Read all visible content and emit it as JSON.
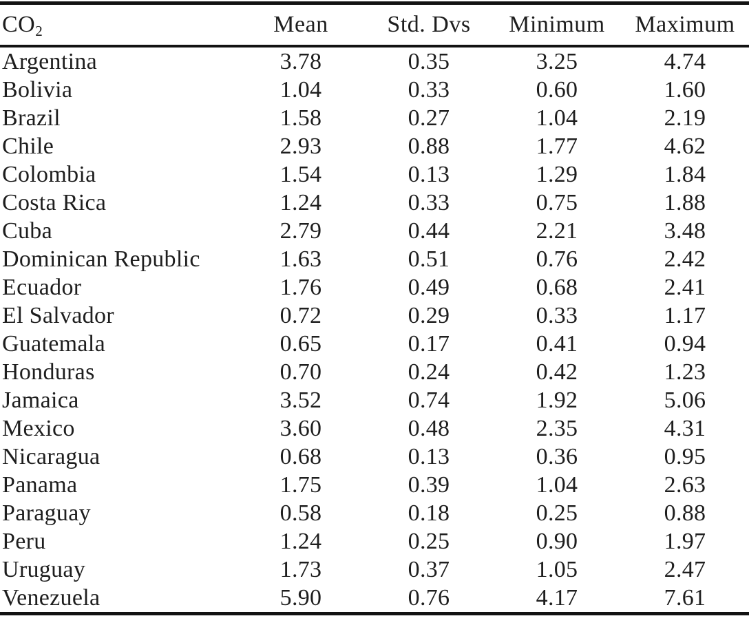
{
  "table": {
    "header": {
      "row_label_main": "CO",
      "row_label_sub": "2",
      "columns": [
        "Mean",
        "Std. Dvs",
        "Minimum",
        "Maximum"
      ]
    },
    "rows": [
      {
        "country": "Argentina",
        "mean": "3.78",
        "std": "0.35",
        "min": "3.25",
        "max": "4.74"
      },
      {
        "country": "Bolivia",
        "mean": "1.04",
        "std": "0.33",
        "min": "0.60",
        "max": "1.60"
      },
      {
        "country": "Brazil",
        "mean": "1.58",
        "std": "0.27",
        "min": "1.04",
        "max": "2.19"
      },
      {
        "country": "Chile",
        "mean": "2.93",
        "std": "0.88",
        "min": "1.77",
        "max": "4.62"
      },
      {
        "country": "Colombia",
        "mean": "1.54",
        "std": "0.13",
        "min": "1.29",
        "max": "1.84"
      },
      {
        "country": "Costa Rica",
        "mean": "1.24",
        "std": "0.33",
        "min": "0.75",
        "max": "1.88"
      },
      {
        "country": "Cuba",
        "mean": "2.79",
        "std": "0.44",
        "min": "2.21",
        "max": "3.48"
      },
      {
        "country": "Dominican Republic",
        "mean": "1.63",
        "std": "0.51",
        "min": "0.76",
        "max": "2.42"
      },
      {
        "country": "Ecuador",
        "mean": "1.76",
        "std": "0.49",
        "min": "0.68",
        "max": "2.41"
      },
      {
        "country": "El Salvador",
        "mean": "0.72",
        "std": "0.29",
        "min": "0.33",
        "max": "1.17"
      },
      {
        "country": "Guatemala",
        "mean": "0.65",
        "std": "0.17",
        "min": "0.41",
        "max": "0.94"
      },
      {
        "country": "Honduras",
        "mean": "0.70",
        "std": "0.24",
        "min": "0.42",
        "max": "1.23"
      },
      {
        "country": "Jamaica",
        "mean": "3.52",
        "std": "0.74",
        "min": "1.92",
        "max": "5.06"
      },
      {
        "country": "Mexico",
        "mean": "3.60",
        "std": "0.48",
        "min": "2.35",
        "max": "4.31"
      },
      {
        "country": "Nicaragua",
        "mean": "0.68",
        "std": "0.13",
        "min": "0.36",
        "max": "0.95"
      },
      {
        "country": "Panama",
        "mean": "1.75",
        "std": "0.39",
        "min": "1.04",
        "max": "2.63"
      },
      {
        "country": "Paraguay",
        "mean": "0.58",
        "std": "0.18",
        "min": "0.25",
        "max": "0.88"
      },
      {
        "country": "Peru",
        "mean": "1.24",
        "std": "0.25",
        "min": "0.90",
        "max": "1.97"
      },
      {
        "country": "Uruguay",
        "mean": "1.73",
        "std": "0.37",
        "min": "1.05",
        "max": "2.47"
      },
      {
        "country": "Venezuela",
        "mean": "5.90",
        "std": "0.76",
        "min": "4.17",
        "max": "7.61"
      }
    ]
  },
  "chart_data": {
    "type": "table",
    "columns": [
      "CO2",
      "Mean",
      "Std. Dvs",
      "Minimum",
      "Maximum"
    ],
    "rows": [
      [
        "Argentina",
        3.78,
        0.35,
        3.25,
        4.74
      ],
      [
        "Bolivia",
        1.04,
        0.33,
        0.6,
        1.6
      ],
      [
        "Brazil",
        1.58,
        0.27,
        1.04,
        2.19
      ],
      [
        "Chile",
        2.93,
        0.88,
        1.77,
        4.62
      ],
      [
        "Colombia",
        1.54,
        0.13,
        1.29,
        1.84
      ],
      [
        "Costa Rica",
        1.24,
        0.33,
        0.75,
        1.88
      ],
      [
        "Cuba",
        2.79,
        0.44,
        2.21,
        3.48
      ],
      [
        "Dominican Republic",
        1.63,
        0.51,
        0.76,
        2.42
      ],
      [
        "Ecuador",
        1.76,
        0.49,
        0.68,
        2.41
      ],
      [
        "El Salvador",
        0.72,
        0.29,
        0.33,
        1.17
      ],
      [
        "Guatemala",
        0.65,
        0.17,
        0.41,
        0.94
      ],
      [
        "Honduras",
        0.7,
        0.24,
        0.42,
        1.23
      ],
      [
        "Jamaica",
        3.52,
        0.74,
        1.92,
        5.06
      ],
      [
        "Mexico",
        3.6,
        0.48,
        2.35,
        4.31
      ],
      [
        "Nicaragua",
        0.68,
        0.13,
        0.36,
        0.95
      ],
      [
        "Panama",
        1.75,
        0.39,
        1.04,
        2.63
      ],
      [
        "Paraguay",
        0.58,
        0.18,
        0.25,
        0.88
      ],
      [
        "Peru",
        1.24,
        0.25,
        0.9,
        1.97
      ],
      [
        "Uruguay",
        1.73,
        0.37,
        1.05,
        2.47
      ],
      [
        "Venezuela",
        5.9,
        0.76,
        4.17,
        7.61
      ]
    ]
  }
}
